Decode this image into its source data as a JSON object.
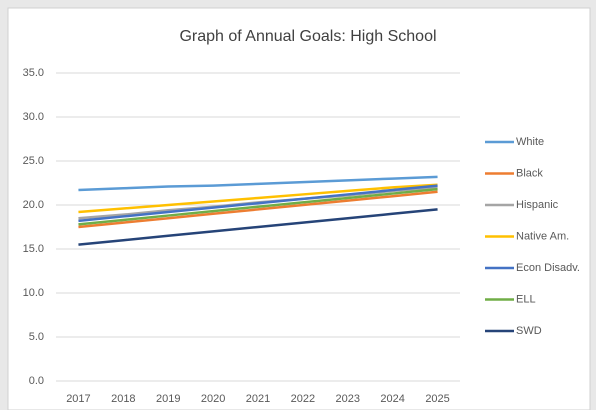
{
  "chart_data": {
    "type": "line",
    "title": "Graph of Annual Goals: High School",
    "categories": [
      "2017",
      "2018",
      "2019",
      "2020",
      "2021",
      "2022",
      "2023",
      "2024",
      "2025"
    ],
    "series": [
      {
        "name": "White",
        "color": "#5b9bd5",
        "values": [
          21.7,
          21.9,
          22.1,
          22.2,
          22.4,
          22.6,
          22.8,
          23.0,
          23.2
        ]
      },
      {
        "name": "Black",
        "color": "#ed7d31",
        "values": [
          17.5,
          18.0,
          18.5,
          19.0,
          19.5,
          20.0,
          20.5,
          21.0,
          21.5
        ]
      },
      {
        "name": "Hispanic",
        "color": "#a5a5a5",
        "values": [
          18.5,
          18.9,
          19.4,
          19.8,
          20.3,
          20.7,
          21.1,
          21.6,
          22.0
        ]
      },
      {
        "name": "Native Am.",
        "color": "#ffc000",
        "values": [
          19.2,
          19.6,
          20.0,
          20.4,
          20.8,
          21.2,
          21.6,
          22.0,
          22.3
        ]
      },
      {
        "name": "Econ Disadv.",
        "color": "#4472c4",
        "values": [
          18.2,
          18.7,
          19.2,
          19.7,
          20.2,
          20.7,
          21.2,
          21.7,
          22.2
        ]
      },
      {
        "name": "ELL",
        "color": "#70ad47",
        "values": [
          17.8,
          18.3,
          18.8,
          19.3,
          19.8,
          20.3,
          20.8,
          21.3,
          21.8
        ]
      },
      {
        "name": "SWD",
        "color": "#264478",
        "values": [
          15.5,
          16.0,
          16.5,
          17.0,
          17.5,
          18.0,
          18.5,
          19.0,
          19.5
        ]
      }
    ],
    "ylim": [
      0,
      35
    ],
    "yticks": [
      {
        "value": 0,
        "label": "0.0"
      },
      {
        "value": 5,
        "label": "5.0"
      },
      {
        "value": 10,
        "label": "10.0"
      },
      {
        "value": 15,
        "label": "15.0"
      },
      {
        "value": 20,
        "label": "20.0"
      },
      {
        "value": 25,
        "label": "25.0"
      },
      {
        "value": 30,
        "label": "30.0"
      },
      {
        "value": 35,
        "label": "35.0"
      }
    ],
    "grid": true,
    "legend": "right"
  }
}
